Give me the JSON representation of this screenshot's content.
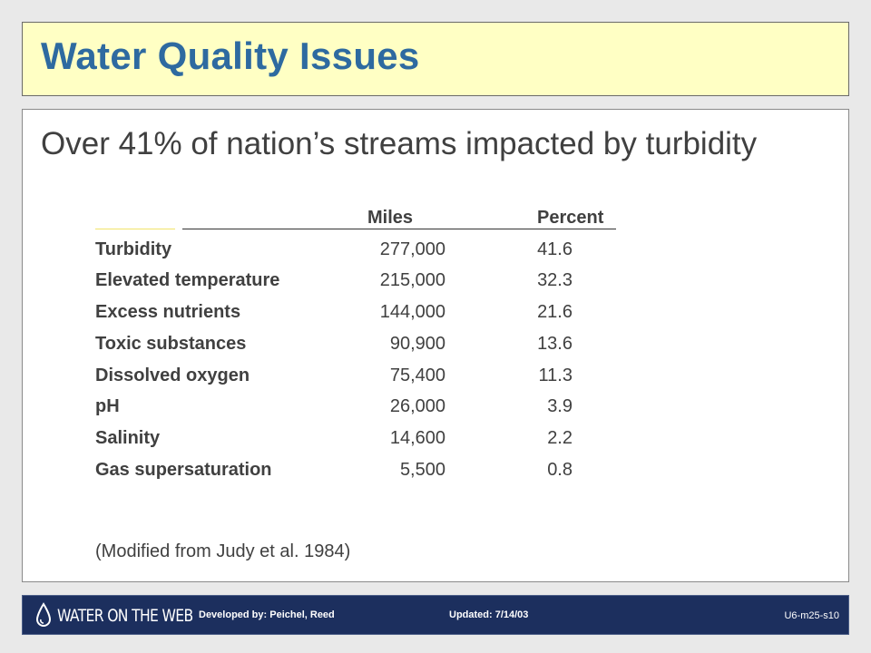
{
  "title": "Water Quality Issues",
  "subtitle": "Over 41% of nation’s streams impacted by turbidity",
  "table": {
    "headers": {
      "miles": "Miles",
      "percent": "Percent"
    },
    "rows": [
      {
        "label": "Turbidity",
        "miles": "277,000",
        "percent": "41.6"
      },
      {
        "label": "Elevated temperature",
        "miles": "215,000",
        "percent": "32.3"
      },
      {
        "label": "Excess nutrients",
        "miles": "144,000",
        "percent": "21.6"
      },
      {
        "label": "Toxic substances",
        "miles": "90,900",
        "percent": "13.6"
      },
      {
        "label": "Dissolved oxygen",
        "miles": "75,400",
        "percent": "11.3"
      },
      {
        "label": "pH",
        "miles": "26,000",
        "percent": "3.9"
      },
      {
        "label": "Salinity",
        "miles": "14,600",
        "percent": "2.2"
      },
      {
        "label": "Gas supersaturation",
        "miles": "5,500",
        "percent": "0.8"
      }
    ]
  },
  "source": "(Modified from Judy et al. 1984)",
  "footer": {
    "logo_text": "WATER ON THE WEB",
    "developed_by": "Developed by: Peichel, Reed",
    "updated": "Updated: 7/14/03",
    "slide_id": "U6-m25-s10"
  },
  "colors": {
    "title": "#2e6aa0",
    "title_background": "#ffffc4",
    "footer_background": "#1c2f5e"
  }
}
